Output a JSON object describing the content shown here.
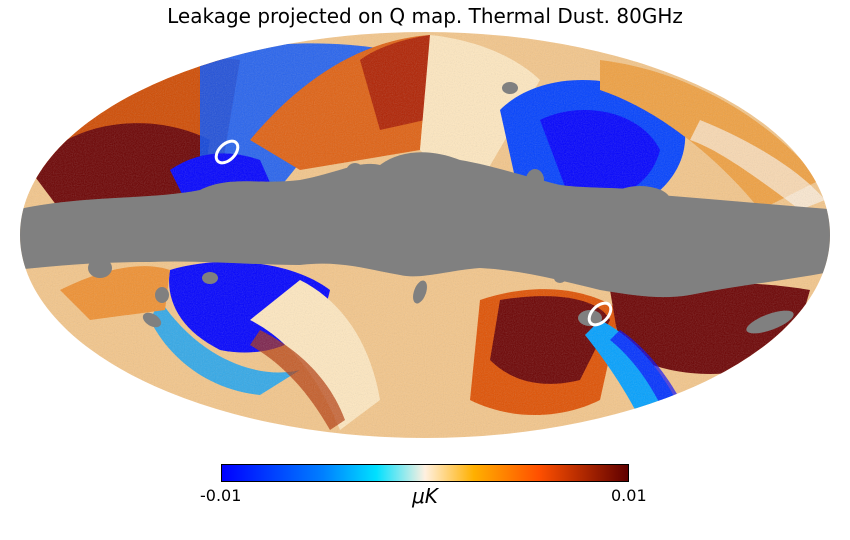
{
  "title": "Leakage projected on Q map. Thermal Dust. 80GHz",
  "colorbar": {
    "min_label": "-0.01",
    "max_label": "0.01",
    "unit": "μK",
    "min": -0.01,
    "max": 0.01
  },
  "projection": "mollweide",
  "colors": {
    "mask": "#808080",
    "negative": "#0000ff",
    "neutral": "#f5f0e0",
    "positive": "#6b0000"
  }
}
